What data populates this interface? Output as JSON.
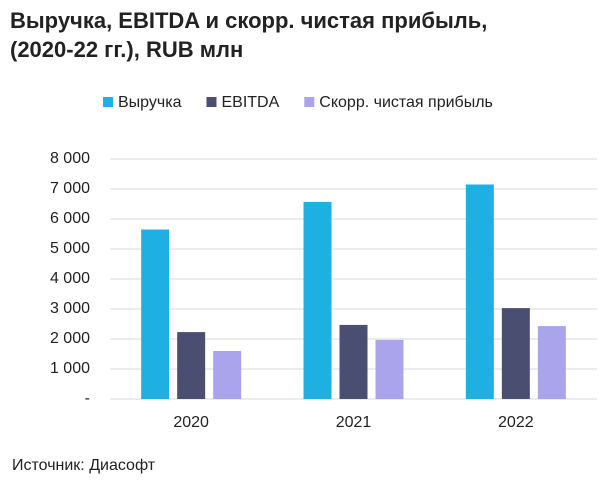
{
  "chart_data": {
    "type": "bar",
    "title": "Выручка, EBITDA и скорр. чистая прибыль, (2020-22 гг.), RUB млн",
    "categories": [
      "2020",
      "2021",
      "2022"
    ],
    "series": [
      {
        "name": "Выручка",
        "color": "#1fb0e3",
        "values": [
          5650,
          6570,
          7150
        ]
      },
      {
        "name": "EBITDA",
        "color": "#4a4f72",
        "values": [
          2230,
          2470,
          3030
        ]
      },
      {
        "name": "Скорр. чистая прибыль",
        "color": "#aaa4ec",
        "values": [
          1600,
          1970,
          2430
        ]
      }
    ],
    "ylim": [
      0,
      8000
    ],
    "yticks": [
      {
        "value": 0,
        "label": "-"
      },
      {
        "value": 1000,
        "label": "1 000"
      },
      {
        "value": 2000,
        "label": "2 000"
      },
      {
        "value": 3000,
        "label": "3 000"
      },
      {
        "value": 4000,
        "label": "4 000"
      },
      {
        "value": 5000,
        "label": "5 000"
      },
      {
        "value": 6000,
        "label": "6 000"
      },
      {
        "value": 7000,
        "label": "7 000"
      },
      {
        "value": 8000,
        "label": "8 000"
      }
    ],
    "grid": true,
    "legend": "top",
    "source": "Источник: Диасофт"
  }
}
